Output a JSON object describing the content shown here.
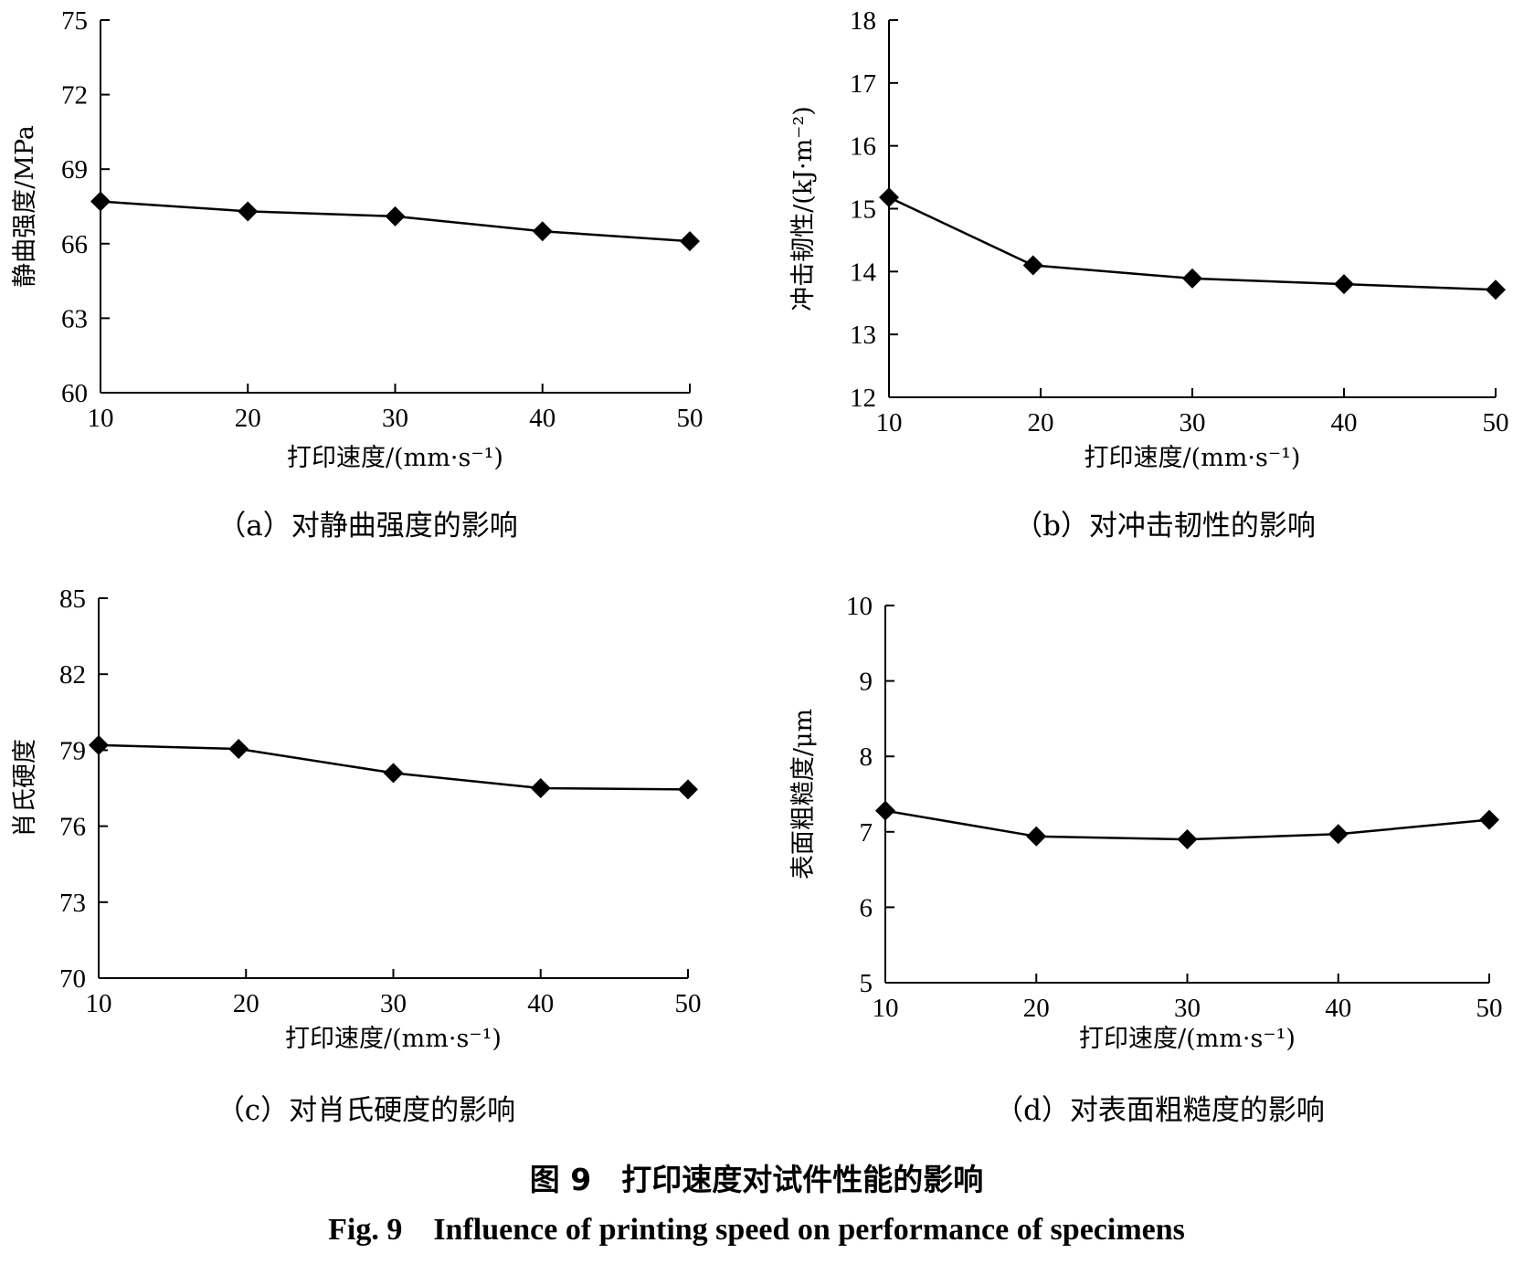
{
  "figure": {
    "caption_cn": "图 9　打印速度对试件性能的影响",
    "caption_en": "Fig. 9　Influence of printing speed on performance of specimens"
  },
  "chart_data": [
    {
      "id": "a",
      "type": "line",
      "subcaption": "（a）对静曲强度的影响",
      "xlabel": "打印速度/(mm·s⁻¹)",
      "ylabel": "静曲强度/MPa",
      "xlim": [
        10,
        50
      ],
      "ylim": [
        60,
        75
      ],
      "xticks": [
        10,
        20,
        30,
        40,
        50
      ],
      "yticks": [
        60,
        63,
        66,
        69,
        72,
        75
      ],
      "marker": "diamond",
      "grid": false,
      "x": [
        10,
        20,
        30,
        40,
        50
      ],
      "y": [
        67.7,
        67.3,
        67.1,
        66.5,
        66.1
      ]
    },
    {
      "id": "b",
      "type": "line",
      "subcaption": "（b）对冲击韧性的影响",
      "xlabel": "打印速度/(mm·s⁻¹)",
      "ylabel": "冲击韧性/(kJ·m⁻²)",
      "xlim": [
        10,
        50
      ],
      "ylim": [
        12,
        18
      ],
      "xticks": [
        10,
        20,
        30,
        40,
        50
      ],
      "yticks": [
        12,
        13,
        14,
        15,
        16,
        17,
        18
      ],
      "marker": "diamond",
      "grid": false,
      "x": [
        10,
        19.5,
        30,
        40,
        50
      ],
      "y": [
        15.18,
        14.1,
        13.89,
        13.8,
        13.71
      ]
    },
    {
      "id": "c",
      "type": "line",
      "subcaption": "（c）对肖氏硬度的影响",
      "xlabel": "打印速度/(mm·s⁻¹)",
      "ylabel": "肖氏硬度",
      "xlim": [
        10,
        50
      ],
      "ylim": [
        70,
        85
      ],
      "xticks": [
        10,
        20,
        30,
        40,
        50
      ],
      "yticks": [
        70,
        73,
        76,
        79,
        82,
        85
      ],
      "marker": "diamond",
      "grid": false,
      "x": [
        10,
        19.5,
        30,
        40,
        50
      ],
      "y": [
        79.2,
        79.05,
        78.1,
        77.5,
        77.45
      ]
    },
    {
      "id": "d",
      "type": "line",
      "subcaption": "（d）对表面粗糙度的影响",
      "xlabel": "打印速度/(mm·s⁻¹)",
      "ylabel": "表面粗糙度/μm",
      "xlim": [
        10,
        50
      ],
      "ylim": [
        5,
        10
      ],
      "xticks": [
        10,
        20,
        30,
        40,
        50
      ],
      "yticks": [
        5,
        6,
        7,
        8,
        9,
        10
      ],
      "marker": "diamond",
      "grid": false,
      "x": [
        10,
        20,
        30,
        40,
        50
      ],
      "y": [
        7.28,
        6.94,
        6.9,
        6.97,
        7.16
      ]
    }
  ]
}
